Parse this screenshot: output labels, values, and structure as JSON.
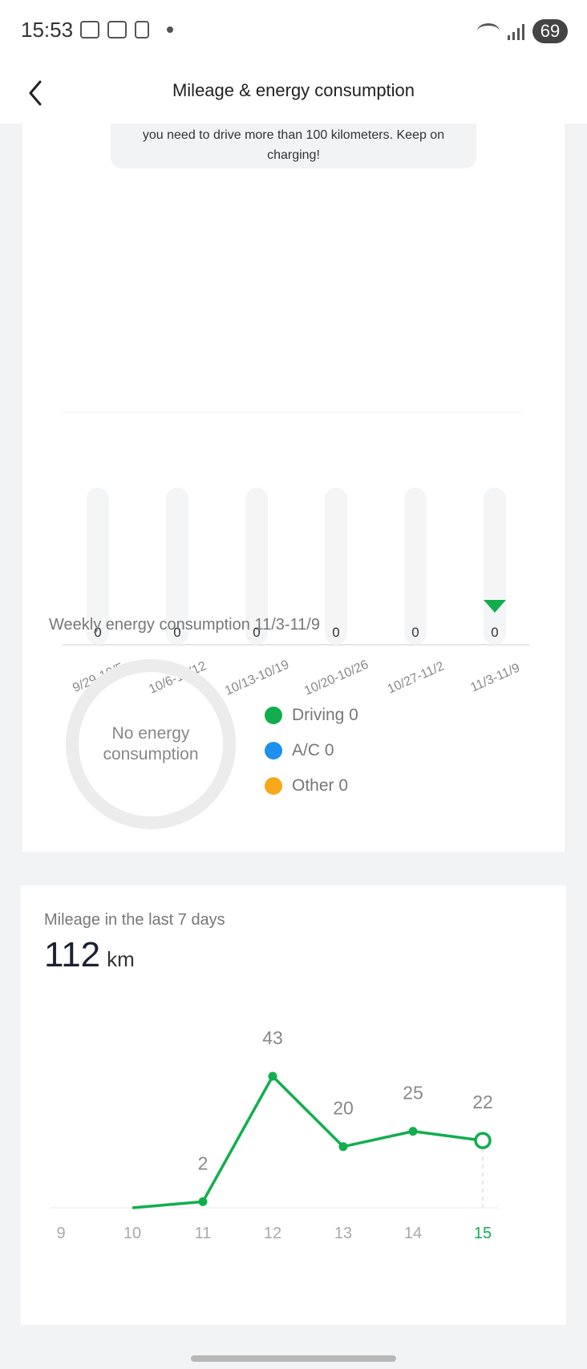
{
  "status_bar": {
    "time": "15:53",
    "battery": "69",
    "icons": [
      "screenshot-icon",
      "app-icon",
      "app-icon-2",
      "dot-icon",
      "wifi-icon",
      "signal-icon"
    ]
  },
  "header": {
    "title": "Mileage & energy consumption",
    "back_icon": "chevron-left-icon"
  },
  "tip": {
    "text": "you need to drive more than 100 kilometers. Keep on charging!"
  },
  "weekly_bar_chart": {
    "chart_data": {
      "type": "bar",
      "categories": [
        "9/29-10/5",
        "10/6-10/12",
        "10/13-10/19",
        "10/20-10/26",
        "10/27-11/2",
        "11/3-11/9"
      ],
      "values": [
        0,
        0,
        0,
        0,
        0,
        0
      ],
      "selected_index": 5,
      "selected_color": "#12ae4e",
      "track_color": "#f4f5f7"
    }
  },
  "energy": {
    "title": "Weekly energy consumption 11/3-11/9",
    "ring_text": "No energy consumption",
    "legend": [
      {
        "label": "Driving 0",
        "color": "#12ae4e"
      },
      {
        "label": "A/C 0",
        "color": "#1e90ee"
      },
      {
        "label": "Other 0",
        "color": "#f7a91b"
      }
    ]
  },
  "mileage": {
    "title": "Mileage in the last 7 days",
    "value": "112",
    "unit": "km",
    "chart_data": {
      "type": "line",
      "x": [
        "9",
        "10",
        "11",
        "12",
        "13",
        "14",
        "15"
      ],
      "y": [
        null,
        0,
        2,
        43,
        20,
        25,
        22
      ],
      "data_labels": [
        "",
        "",
        "2",
        "43",
        "20",
        "25",
        "22"
      ],
      "highlight_index": 6,
      "line_color": "#12ae4e",
      "ylim": [
        0,
        43
      ]
    }
  }
}
